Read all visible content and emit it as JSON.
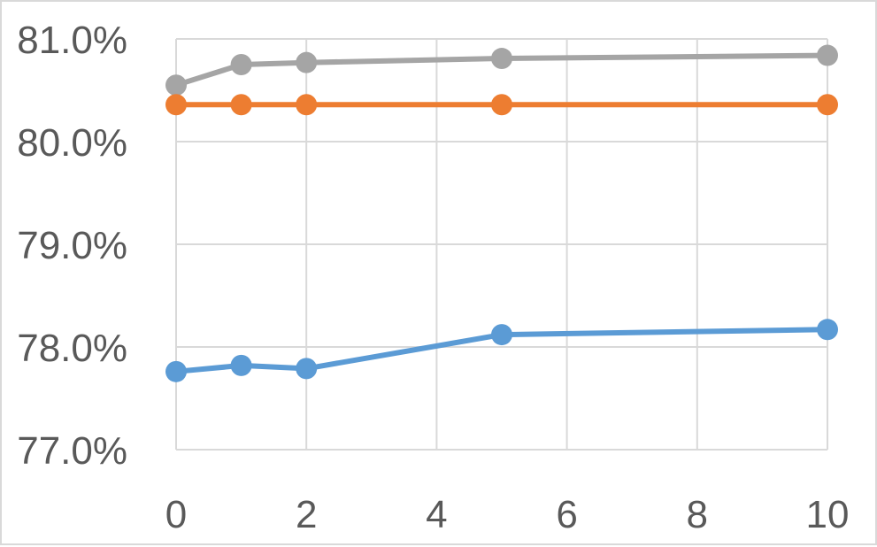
{
  "chart_data": {
    "type": "line",
    "title": "",
    "xlabel": "",
    "ylabel": "",
    "x": [
      0,
      1,
      2,
      5,
      10
    ],
    "xlim": [
      0,
      10
    ],
    "ylim": [
      77.0,
      81.0
    ],
    "x_ticks": [
      0,
      2,
      4,
      6,
      8,
      10
    ],
    "x_tick_labels": [
      "0",
      "2",
      "4",
      "6",
      "8",
      "10"
    ],
    "y_ticks": [
      77.0,
      78.0,
      79.0,
      80.0,
      81.0
    ],
    "y_tick_labels": [
      "77.0%",
      "78.0%",
      "79.0%",
      "80.0%",
      "81.0%"
    ],
    "grid": true,
    "legend": "none",
    "series": [
      {
        "color": "#a5a5a5",
        "values": [
          80.55,
          80.75,
          80.77,
          80.81,
          80.84
        ]
      },
      {
        "color": "#ed7d31",
        "values": [
          80.36,
          80.36,
          80.36,
          80.36,
          80.36
        ]
      },
      {
        "color": "#5b9bd5",
        "values": [
          77.76,
          77.82,
          77.79,
          78.12,
          78.17
        ]
      }
    ]
  }
}
